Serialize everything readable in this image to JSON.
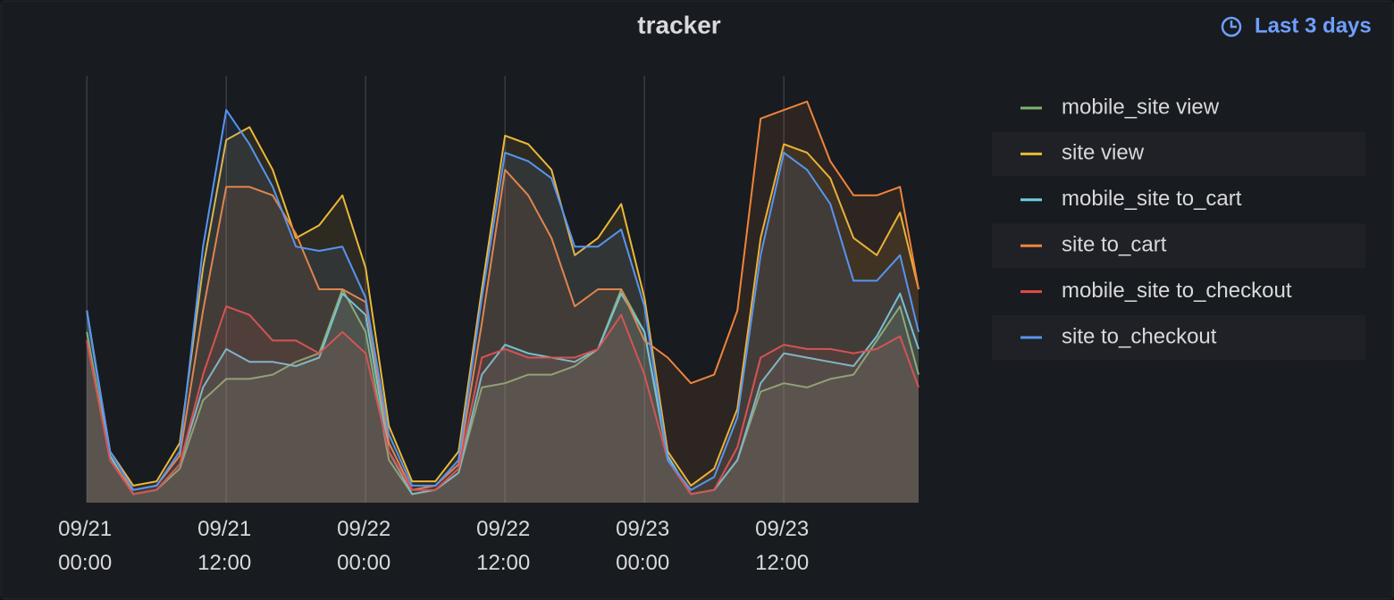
{
  "chart_data": {
    "type": "line",
    "title": "tracker",
    "time_range": "Last 3 days",
    "x": [
      0,
      2,
      4,
      6,
      8,
      10,
      12,
      14,
      16,
      18,
      20,
      22,
      24,
      26,
      28,
      30,
      32,
      34,
      36,
      38,
      40,
      42,
      44,
      46,
      48,
      50,
      52,
      54,
      56,
      58,
      60,
      62,
      64,
      66,
      68,
      70,
      71.6
    ],
    "xlim": [
      -0.4,
      71.6
    ],
    "xticks": [
      {
        "value": 0,
        "label": "09/21 00:00"
      },
      {
        "value": 12,
        "label": "09/21 12:00"
      },
      {
        "value": 24,
        "label": "09/22 00:00"
      },
      {
        "value": 36,
        "label": "09/22 12:00"
      },
      {
        "value": 48,
        "label": "09/23 00:00"
      },
      {
        "value": 60,
        "label": "09/23 12:00"
      }
    ],
    "ylim": [
      0,
      100
    ],
    "grid": true,
    "series": [
      {
        "name": "mobile_site view",
        "color": "#7eb26d",
        "values": [
          40,
          10,
          2,
          3,
          8,
          24,
          29,
          29,
          30,
          33,
          35,
          50,
          40,
          10,
          2,
          3,
          7,
          27,
          28,
          30,
          30,
          32,
          36,
          50,
          40,
          10,
          2,
          3,
          10,
          26,
          28,
          27,
          29,
          30,
          38,
          46,
          30
        ]
      },
      {
        "name": "site view",
        "color": "#eab839",
        "values": [
          45,
          12,
          4,
          5,
          14,
          55,
          85,
          88,
          78,
          62,
          65,
          72,
          55,
          18,
          5,
          5,
          12,
          50,
          86,
          84,
          78,
          58,
          62,
          70,
          48,
          12,
          4,
          8,
          22,
          62,
          84,
          82,
          76,
          62,
          58,
          68,
          50
        ]
      },
      {
        "name": "mobile_site to_cart",
        "color": "#6ed0e0",
        "values": [
          45,
          11,
          2,
          3,
          9,
          27,
          36,
          33,
          33,
          32,
          34,
          49,
          44,
          12,
          2,
          3,
          7,
          30,
          37,
          35,
          34,
          33,
          36,
          49,
          40,
          11,
          2,
          3,
          10,
          28,
          35,
          34,
          33,
          32,
          39,
          49,
          36
        ]
      },
      {
        "name": "site to_cart",
        "color": "#ef843c",
        "values": [
          38,
          10,
          3,
          4,
          11,
          45,
          74,
          74,
          72,
          63,
          50,
          50,
          47,
          14,
          3,
          4,
          9,
          42,
          78,
          72,
          62,
          46,
          50,
          50,
          38,
          34,
          28,
          30,
          45,
          90,
          92,
          94,
          80,
          72,
          72,
          74,
          50
        ]
      },
      {
        "name": "mobile_site to_checkout",
        "color": "#e24d42",
        "values": [
          38,
          10,
          2,
          3,
          9,
          30,
          46,
          44,
          38,
          38,
          35,
          40,
          35,
          12,
          3,
          3,
          8,
          34,
          36,
          34,
          34,
          34,
          36,
          44,
          30,
          10,
          2,
          3,
          13,
          34,
          37,
          36,
          36,
          35,
          36,
          39,
          27
        ]
      },
      {
        "name": "site to_checkout",
        "color": "#5794f2",
        "values": [
          45,
          12,
          3,
          4,
          12,
          60,
          92,
          84,
          74,
          60,
          59,
          60,
          48,
          16,
          4,
          4,
          10,
          48,
          82,
          80,
          76,
          60,
          60,
          64,
          46,
          10,
          3,
          6,
          20,
          58,
          82,
          78,
          70,
          52,
          52,
          58,
          40
        ]
      }
    ]
  }
}
